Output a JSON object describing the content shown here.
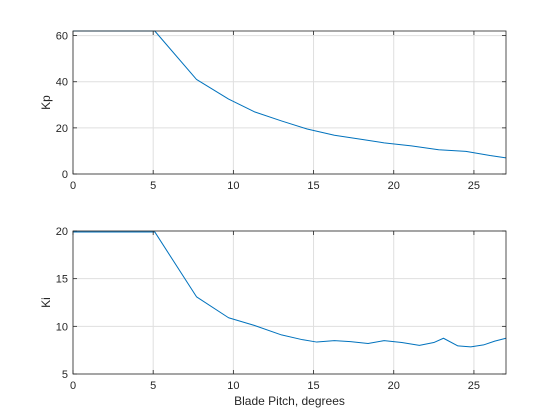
{
  "chart_data": [
    {
      "type": "line",
      "ylabel": "Kp",
      "xlabel": "",
      "xlim": [
        0,
        27
      ],
      "ylim": [
        0,
        62
      ],
      "xticks": [
        0,
        5,
        10,
        15,
        20,
        25
      ],
      "yticks": [
        0,
        20,
        40,
        60
      ],
      "grid": true,
      "line_color": "#0072bd",
      "series": [
        {
          "x": [
            0,
            5.1,
            7.7,
            9.7,
            11.3,
            13.0,
            14.6,
            16.3,
            18.0,
            19.4,
            21.1,
            22.8,
            24.5,
            26.0,
            27
          ],
          "y": [
            62,
            62,
            41,
            32.5,
            27,
            23,
            19.5,
            16.8,
            15,
            13.5,
            12.2,
            10.5,
            9.8,
            8.0,
            7.0
          ]
        }
      ]
    },
    {
      "type": "line",
      "ylabel": "Ki",
      "xlabel": "Blade Pitch, degrees",
      "xlim": [
        0,
        27
      ],
      "ylim": [
        5,
        20
      ],
      "xticks": [
        0,
        5,
        10,
        15,
        20,
        25
      ],
      "yticks": [
        5,
        10,
        15,
        20
      ],
      "grid": true,
      "line_color": "#0072bd",
      "series": [
        {
          "x": [
            0,
            5.1,
            7.7,
            9.7,
            11.3,
            13.0,
            14.3,
            15.2,
            16.3,
            17.3,
            18.4,
            19.4,
            20.5,
            21.6,
            22.5,
            23.1,
            24.0,
            24.8,
            25.6,
            26.3,
            27
          ],
          "y": [
            19.9,
            19.9,
            13.1,
            10.9,
            10.1,
            9.1,
            8.6,
            8.35,
            8.5,
            8.4,
            8.2,
            8.5,
            8.3,
            8.0,
            8.3,
            8.75,
            7.95,
            7.85,
            8.05,
            8.45,
            8.75
          ]
        }
      ]
    }
  ]
}
